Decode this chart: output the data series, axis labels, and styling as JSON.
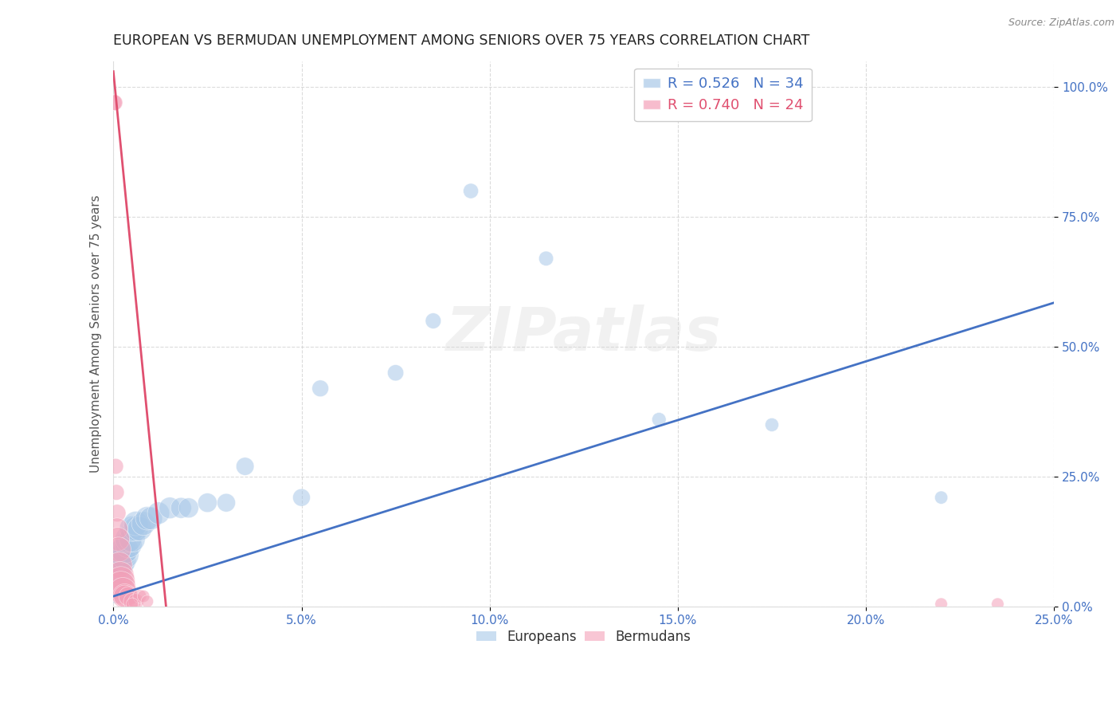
{
  "title": "EUROPEAN VS BERMUDAN UNEMPLOYMENT AMONG SENIORS OVER 75 YEARS CORRELATION CHART",
  "source": "Source: ZipAtlas.com",
  "ylabel": "Unemployment Among Seniors over 75 years",
  "watermark": "ZIPatlas",
  "xlim": [
    0.0,
    0.25
  ],
  "ylim": [
    0.0,
    1.05
  ],
  "xticks": [
    0.0,
    0.05,
    0.1,
    0.15,
    0.2,
    0.25
  ],
  "yticks": [
    0.0,
    0.25,
    0.5,
    0.75,
    1.0
  ],
  "background_color": "#ffffff",
  "grid_color": "#cccccc",
  "europeans_color": "#a8c8e8",
  "bermudans_color": "#f4a0b8",
  "line_euro_color": "#4472C4",
  "line_berm_color": "#e05070",
  "legend_euro_R": "R = 0.526",
  "legend_euro_N": "N = 34",
  "legend_berm_R": "R = 0.740",
  "legend_berm_N": "N = 24",
  "euro_line_x0": 0.0,
  "euro_line_y0": 0.02,
  "euro_line_x1": 0.25,
  "euro_line_y1": 0.585,
  "berm_line_x0": 0.0,
  "berm_line_y0": 1.03,
  "berm_line_x1": 0.014,
  "berm_line_y1": 0.0,
  "europeans_x": [
    0.0005,
    0.001,
    0.001,
    0.0015,
    0.002,
    0.002,
    0.003,
    0.003,
    0.004,
    0.004,
    0.005,
    0.005,
    0.006,
    0.006,
    0.007,
    0.008,
    0.009,
    0.01,
    0.012,
    0.015,
    0.018,
    0.02,
    0.025,
    0.03,
    0.035,
    0.05,
    0.055,
    0.075,
    0.085,
    0.095,
    0.115,
    0.145,
    0.175,
    0.22
  ],
  "europeans_y": [
    0.03,
    0.05,
    0.07,
    0.08,
    0.09,
    0.1,
    0.1,
    0.11,
    0.12,
    0.13,
    0.13,
    0.15,
    0.15,
    0.16,
    0.15,
    0.16,
    0.17,
    0.17,
    0.18,
    0.19,
    0.19,
    0.19,
    0.2,
    0.2,
    0.27,
    0.21,
    0.42,
    0.45,
    0.55,
    0.8,
    0.67,
    0.36,
    0.35,
    0.21
  ],
  "europeans_size": [
    200,
    300,
    250,
    280,
    300,
    280,
    260,
    250,
    240,
    230,
    220,
    210,
    200,
    195,
    190,
    185,
    180,
    170,
    160,
    150,
    140,
    130,
    120,
    110,
    105,
    100,
    90,
    85,
    80,
    75,
    70,
    65,
    60,
    55
  ],
  "bermudans_x": [
    0.0002,
    0.0004,
    0.0006,
    0.0008,
    0.001,
    0.001,
    0.0012,
    0.0014,
    0.0016,
    0.0018,
    0.002,
    0.002,
    0.0025,
    0.003,
    0.003,
    0.004,
    0.005,
    0.006,
    0.007,
    0.008,
    0.009,
    0.22,
    0.235,
    0.005
  ],
  "bermudans_y": [
    0.97,
    0.97,
    0.27,
    0.22,
    0.18,
    0.15,
    0.13,
    0.11,
    0.08,
    0.06,
    0.05,
    0.04,
    0.03,
    0.02,
    0.02,
    0.02,
    0.01,
    0.01,
    0.02,
    0.02,
    0.01,
    0.005,
    0.005,
    0.005
  ],
  "bermudans_size": [
    80,
    80,
    80,
    80,
    100,
    150,
    180,
    200,
    220,
    250,
    260,
    280,
    240,
    200,
    160,
    120,
    100,
    80,
    60,
    50,
    50,
    50,
    50,
    50
  ]
}
